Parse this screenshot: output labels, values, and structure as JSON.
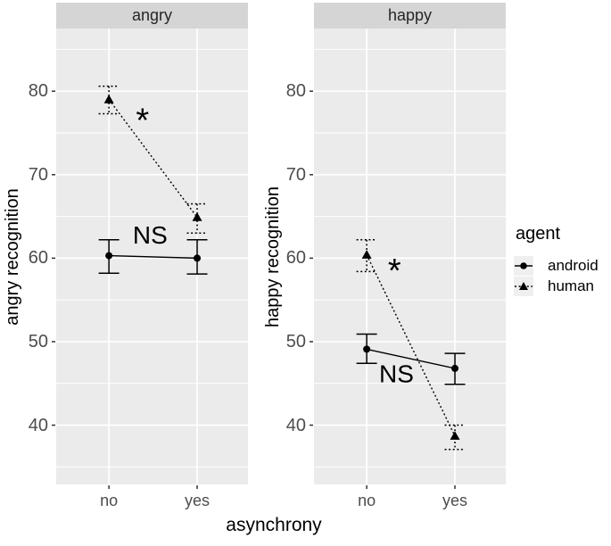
{
  "figure": {
    "legend": {
      "title": "agent",
      "items": [
        {
          "label": "android",
          "marker": "circle",
          "line": "solid"
        },
        {
          "label": "human",
          "marker": "triangle",
          "line": "dotted"
        }
      ]
    },
    "colors": {
      "panel_bg": "#ebebeb",
      "strip_bg": "#d5d5d5",
      "grid": "#ffffff",
      "series": "#000000",
      "tick_text": "#4d4d4d",
      "legend_key_bg": "#efefef"
    }
  },
  "chart_data": {
    "type": "line",
    "xlabel": "asynchrony",
    "categories": [
      "no",
      "yes"
    ],
    "yticks": [
      40,
      50,
      60,
      70,
      80
    ],
    "yticks_minor": [
      35,
      45,
      55,
      65,
      75,
      85
    ],
    "ylim": [
      32.9,
      87.5
    ],
    "facets": [
      {
        "title": "angry",
        "ylabel": "angry recognition",
        "series": [
          {
            "name": "android",
            "means": [
              60.3,
              60.0
            ],
            "ci_low": [
              58.2,
              58.1
            ],
            "ci_high": [
              62.2,
              62.2
            ]
          },
          {
            "name": "human",
            "means": [
              79.0,
              64.9
            ],
            "ci_low": [
              77.3,
              63.0
            ],
            "ci_high": [
              80.6,
              66.5
            ]
          }
        ],
        "annotations": [
          {
            "text": "*",
            "fx": 0.45,
            "v": 77.2
          },
          {
            "text": "NS",
            "fx": 0.49,
            "v": 62.8
          }
        ]
      },
      {
        "title": "happy",
        "ylabel": "happy recognition",
        "series": [
          {
            "name": "android",
            "means": [
              49.1,
              46.8
            ],
            "ci_low": [
              47.4,
              44.9
            ],
            "ci_high": [
              50.9,
              48.6
            ]
          },
          {
            "name": "human",
            "means": [
              60.4,
              38.7
            ],
            "ci_low": [
              58.4,
              37.1
            ],
            "ci_high": [
              62.2,
              40.0
            ]
          }
        ],
        "annotations": [
          {
            "text": "*",
            "fx": 0.42,
            "v": 59.2
          },
          {
            "text": "NS",
            "fx": 0.43,
            "v": 46.2
          }
        ]
      }
    ]
  }
}
